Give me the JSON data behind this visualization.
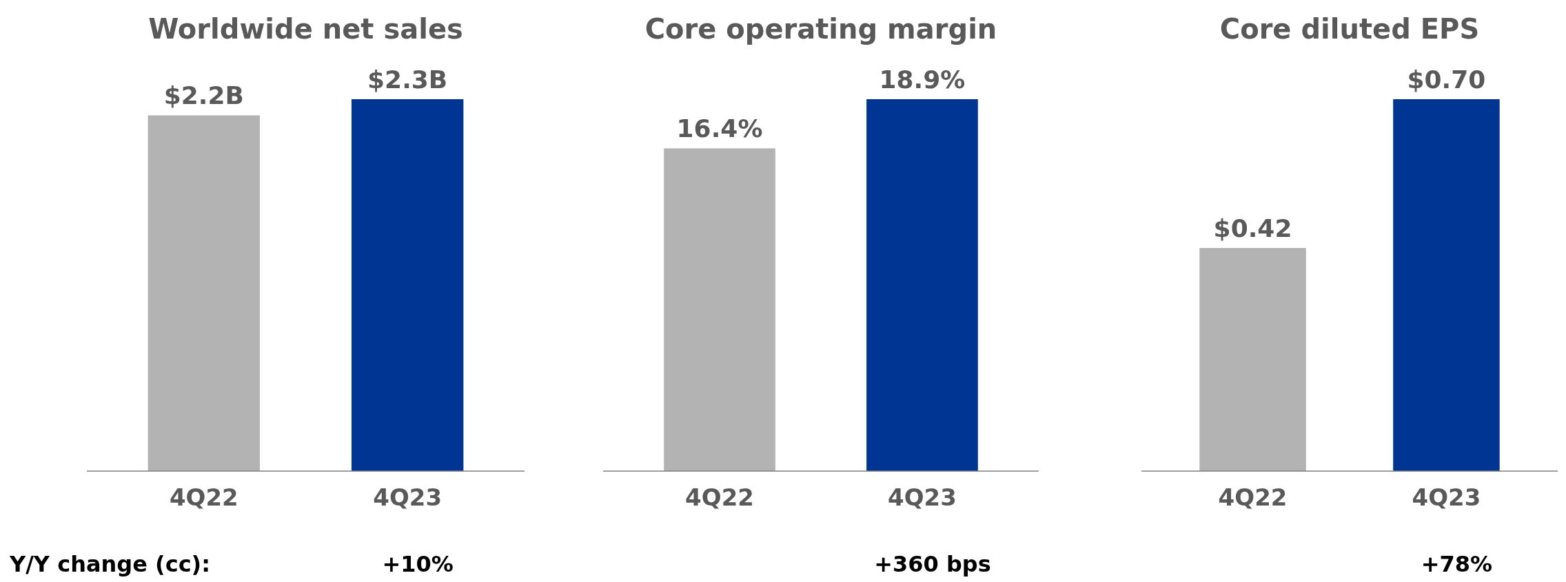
{
  "chart_data": [
    {
      "type": "bar",
      "title": "Worldwide net sales",
      "categories": [
        "4Q22",
        "4Q23"
      ],
      "values": [
        2.2,
        2.3
      ],
      "colors": [
        "#b3b3b3",
        "#003594"
      ],
      "value_labels": [
        "$2.2B",
        "$2.3B"
      ],
      "annotations": [
        "Y/Y change (cc):",
        "+10%"
      ]
    },
    {
      "type": "bar",
      "title": "Core operating margin",
      "categories": [
        "4Q22",
        "4Q23"
      ],
      "values": [
        16.4,
        18.9
      ],
      "colors": [
        "#b3b3b3",
        "#003594"
      ],
      "value_labels": [
        "16.4%",
        "18.9%"
      ],
      "annotations": [
        "+360 bps"
      ]
    },
    {
      "type": "bar",
      "title": "Core diluted EPS",
      "categories": [
        "4Q22",
        "4Q23"
      ],
      "values": [
        0.42,
        0.7
      ],
      "colors": [
        "#b3b3b3",
        "#003594"
      ],
      "value_labels": [
        "$0.42",
        "$0.70"
      ],
      "annotations": [
        "+78%"
      ]
    }
  ]
}
